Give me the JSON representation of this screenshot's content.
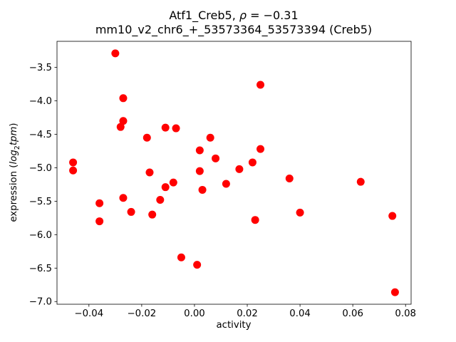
{
  "figure": {
    "title_line1": {
      "prefix": "Atf1_Creb5, ",
      "rho": "ρ",
      "eq": " = −0.31"
    },
    "title_line2": "mm10_v2_chr6_+_53573364_53573394 (Creb5)",
    "xlabel": "activity",
    "ylabel": {
      "prefix": "expression (",
      "log_word": "log",
      "subscript": "2",
      "tpm_word": "tpm",
      "suffix": ")"
    }
  },
  "chart_data": {
    "type": "scatter",
    "title": "Atf1_Creb5, ρ = −0.31\nmm10_v2_chr6_+_53573364_53573394 (Creb5)",
    "xlabel": "activity",
    "ylabel": "expression (log2 tpm)",
    "legend": "none",
    "grid": false,
    "marker": {
      "shape": "circle",
      "color": "#ff0000",
      "radius_px": 5.5
    },
    "xlim": [
      -0.0521,
      0.0821
    ],
    "ylim": [
      -7.04,
      -3.11
    ],
    "xticks": [
      -0.04,
      -0.02,
      0.0,
      0.02,
      0.04,
      0.06,
      0.08
    ],
    "yticks": [
      -3.5,
      -4.0,
      -4.5,
      -5.0,
      -5.5,
      -6.0,
      -6.5,
      -7.0
    ],
    "points": [
      [
        -0.046,
        -4.92
      ],
      [
        -0.046,
        -5.04
      ],
      [
        -0.036,
        -5.53
      ],
      [
        -0.036,
        -5.8
      ],
      [
        -0.03,
        -3.29
      ],
      [
        -0.027,
        -3.96
      ],
      [
        -0.027,
        -4.3
      ],
      [
        -0.028,
        -4.39
      ],
      [
        -0.027,
        -5.45
      ],
      [
        -0.024,
        -5.66
      ],
      [
        -0.018,
        -4.55
      ],
      [
        -0.017,
        -5.07
      ],
      [
        -0.016,
        -5.7
      ],
      [
        -0.013,
        -5.48
      ],
      [
        -0.011,
        -5.29
      ],
      [
        -0.011,
        -4.4
      ],
      [
        -0.008,
        -5.22
      ],
      [
        -0.007,
        -4.41
      ],
      [
        -0.005,
        -6.34
      ],
      [
        0.001,
        -6.45
      ],
      [
        0.002,
        -4.74
      ],
      [
        0.002,
        -5.05
      ],
      [
        0.003,
        -5.33
      ],
      [
        0.006,
        -4.55
      ],
      [
        0.008,
        -4.86
      ],
      [
        0.012,
        -5.24
      ],
      [
        0.017,
        -5.02
      ],
      [
        0.022,
        -4.92
      ],
      [
        0.025,
        -4.72
      ],
      [
        0.025,
        -3.76
      ],
      [
        0.023,
        -5.78
      ],
      [
        0.036,
        -5.16
      ],
      [
        0.04,
        -5.67
      ],
      [
        0.063,
        -5.21
      ],
      [
        0.075,
        -5.72
      ],
      [
        0.076,
        -6.86
      ]
    ]
  }
}
